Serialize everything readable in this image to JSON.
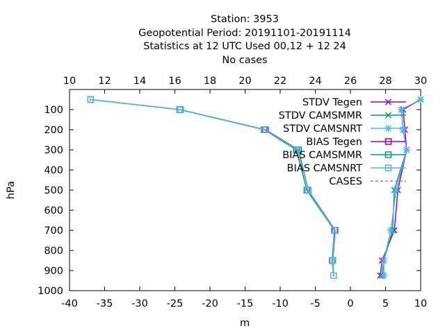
{
  "chart_data": {
    "type": "line",
    "title_lines": [
      "Station:     3953",
      "Geopotential  Period: 20191101-20191114",
      "Statistics at 12 UTC  Used  00,12  + 12 24",
      "No cases"
    ],
    "xlabel": "m",
    "ylabel": "hPa",
    "x_bottom": {
      "range": [
        -40,
        10
      ],
      "ticks": [
        "-40",
        "-35",
        "-30",
        "-25",
        "-20",
        "-15",
        "-10",
        "-5",
        "0",
        "5",
        "10"
      ]
    },
    "x_top": {
      "range": [
        10,
        30
      ],
      "ticks": [
        "10",
        "12",
        "14",
        "16",
        "18",
        "20",
        "22",
        "24",
        "26",
        "28",
        "30"
      ]
    },
    "y": {
      "range": [
        0,
        1000
      ],
      "inverted": true,
      "ticks": [
        "100",
        "200",
        "300",
        "400",
        "500",
        "600",
        "700",
        "800",
        "900",
        "1000"
      ]
    },
    "legend_position": "top-right",
    "levels": [
      50,
      100,
      200,
      300,
      500,
      700,
      850,
      925
    ],
    "series": [
      {
        "name": "STDV Tegen",
        "axis": "top",
        "color": "#9400d3",
        "marker": "x",
        "dash": false,
        "values": [
          30,
          29.0,
          29.1,
          29.2,
          28.7,
          28.5,
          27.8,
          27.7
        ]
      },
      {
        "name": "STDV CAMSMMR",
        "axis": "top",
        "color": "#009e73",
        "marker": "x",
        "dash": false,
        "values": [
          30,
          28.9,
          29.0,
          29.2,
          28.5,
          28.4,
          27.9,
          27.8
        ]
      },
      {
        "name": "STDV CAMSNRT",
        "axis": "top",
        "color": "#56b4e9",
        "marker": "star",
        "dash": false,
        "values": [
          30,
          28.9,
          29.0,
          29.2,
          28.6,
          28.3,
          27.9,
          27.9
        ]
      },
      {
        "name": "BIAS Tegen",
        "axis": "bottom",
        "color": "#9400d3",
        "marker": "square",
        "dash": false,
        "values": [
          -37.0,
          -24.2,
          -12.1,
          -7.4,
          -6.0,
          -2.2,
          -2.5,
          -2.4
        ]
      },
      {
        "name": "BIAS CAMSMMR",
        "axis": "bottom",
        "color": "#009e73",
        "marker": "square",
        "dash": false,
        "values": [
          -37.0,
          -24.3,
          -12.3,
          -7.7,
          -6.2,
          -2.3,
          -2.6,
          -2.4
        ]
      },
      {
        "name": "BIAS CAMSNRT",
        "axis": "bottom",
        "color": "#56b4e9",
        "marker": "square-dot",
        "dash": false,
        "values": [
          -37.0,
          -24.2,
          -12.2,
          -7.5,
          -6.0,
          -2.3,
          -2.5,
          -2.4
        ]
      },
      {
        "name": "CASES",
        "axis": "top",
        "color": "#8c8c8c",
        "marker": "none",
        "dash": true,
        "values": [
          null,
          null,
          null,
          null,
          null,
          null,
          null,
          null
        ]
      }
    ]
  }
}
